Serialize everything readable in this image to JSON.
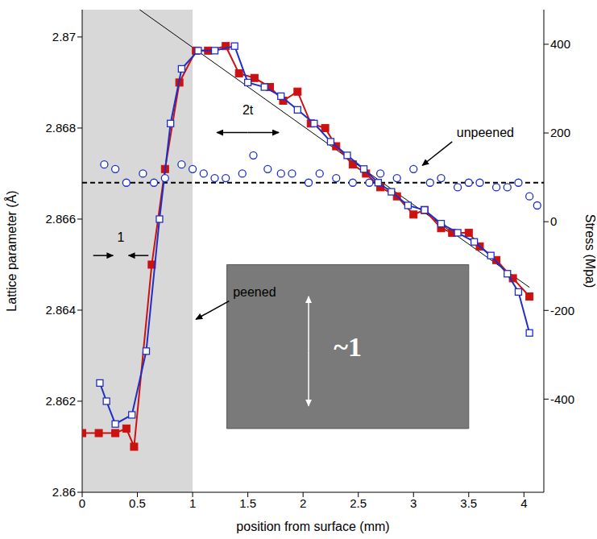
{
  "chart_data": {
    "type": "scatter",
    "x_label": "position from surface (mm)",
    "y_label": "Lattice parameter (Å)",
    "y2_label": "Stress (Mpa)",
    "xlim": [
      0,
      4.18
    ],
    "xticks": [
      0,
      0.5,
      1,
      1.5,
      2,
      2.5,
      3,
      3.5,
      4
    ],
    "ylim": [
      2.86,
      2.8706
    ],
    "yticks": [
      2.86,
      2.862,
      2.864,
      2.866,
      2.868,
      2.87
    ],
    "y2lim": [
      -610,
      478
    ],
    "y2ticks": [
      -400,
      -200,
      0,
      200,
      400
    ],
    "grid": false,
    "series": [
      {
        "color": "#cc1111",
        "marker": "square_filled",
        "line_style": "solid",
        "x": [
          0,
          0.15,
          0.3,
          0.4,
          0.47,
          0.63,
          0.75,
          0.88,
          1.03,
          1.14,
          1.3,
          1.42,
          1.56,
          1.7,
          1.82,
          1.95,
          2.07,
          2.2,
          2.3,
          2.45,
          2.57,
          2.7,
          2.85,
          3.0,
          3.1,
          3.25,
          3.35,
          3.5,
          3.6,
          3.75,
          3.9,
          4.05
        ],
        "values": [
          2.8613,
          2.8613,
          2.8613,
          2.8614,
          2.861,
          2.865,
          2.8671,
          2.869,
          2.8697,
          2.8697,
          2.8698,
          2.8692,
          2.8691,
          2.8689,
          2.8686,
          2.8688,
          2.8681,
          2.868,
          2.8676,
          2.8672,
          2.867,
          2.8667,
          2.8665,
          2.8661,
          2.8662,
          2.8658,
          2.8657,
          2.8657,
          2.8654,
          2.8651,
          2.8647,
          2.8643
        ]
      },
      {
        "color": "#1f2fc4",
        "marker": "square_open",
        "line_style": "solid",
        "x": [
          0.16,
          0.22,
          0.3,
          0.45,
          0.58,
          0.7,
          0.8,
          0.9,
          1.05,
          1.2,
          1.38,
          1.5,
          1.65,
          1.8,
          1.95,
          2.1,
          2.25,
          2.4,
          2.55,
          2.68,
          2.8,
          2.95,
          3.1,
          3.25,
          3.4,
          3.55,
          3.7,
          3.85,
          3.95,
          4.05
        ],
        "values": [
          2.8624,
          2.862,
          2.8615,
          2.8617,
          2.8631,
          2.866,
          2.8681,
          2.8693,
          2.8697,
          2.8697,
          2.8698,
          2.869,
          2.8689,
          2.8687,
          2.8684,
          2.8681,
          2.8677,
          2.8674,
          2.8671,
          2.8668,
          2.8666,
          2.8663,
          2.8662,
          2.8659,
          2.8657,
          2.8655,
          2.8652,
          2.8648,
          2.8644,
          2.8635
        ]
      },
      {
        "color": "#1f2fc4",
        "marker": "circle_open",
        "line_style": "none",
        "x": [
          0.2,
          0.3,
          0.4,
          0.55,
          0.65,
          0.75,
          0.9,
          1.0,
          1.1,
          1.2,
          1.3,
          1.45,
          1.55,
          1.68,
          1.8,
          1.9,
          2.05,
          2.15,
          2.3,
          2.45,
          2.6,
          2.7,
          2.85,
          3.0,
          3.15,
          3.25,
          3.4,
          3.5,
          3.6,
          3.75,
          3.85,
          3.95,
          4.05,
          4.12
        ],
        "values": [
          2.8672,
          2.8671,
          2.8668,
          2.867,
          2.8668,
          2.8669,
          2.8672,
          2.8671,
          2.867,
          2.8669,
          2.8669,
          2.867,
          2.8674,
          2.8671,
          2.867,
          2.867,
          2.8668,
          2.867,
          2.8669,
          2.8668,
          2.8668,
          2.867,
          2.8669,
          2.8671,
          2.8668,
          2.8669,
          2.8667,
          2.8668,
          2.8668,
          2.8667,
          2.8667,
          2.8668,
          2.8665,
          2.8663
        ]
      }
    ],
    "reference_line": {
      "value": 2.8668,
      "color": "#000000",
      "line_style": "dashed"
    },
    "trend_line": {
      "x": [
        0.52,
        4.05
      ],
      "values": [
        2.8706,
        2.8645
      ],
      "color": "#000000"
    },
    "shaded_region": {
      "x": [
        0,
        1
      ],
      "color": "#c8c8c8"
    },
    "annotations": [
      {
        "text": "2t",
        "x": 1.5,
        "y": 2.8684
      },
      {
        "text": "1",
        "x": 0.35,
        "y": 2.8656
      },
      {
        "text": "unpeened",
        "x": 3.65,
        "y": 2.8679
      },
      {
        "text": "peened",
        "x": 1.56,
        "y": 2.8644
      }
    ],
    "arrows": [
      {
        "x": [
          1.5,
          1.22
        ],
        "y": [
          2.8679,
          2.8679
        ],
        "color": "#000000"
      },
      {
        "x": [
          1.5,
          1.78
        ],
        "y": [
          2.8679,
          2.8679
        ],
        "color": "#000000"
      },
      {
        "x": [
          0.1,
          0.28
        ],
        "y": [
          2.8652,
          2.8652
        ],
        "color": "#000000"
      },
      {
        "x": [
          0.6,
          0.42
        ],
        "y": [
          2.8652,
          2.8652
        ],
        "color": "#000000"
      },
      {
        "x": [
          3.35,
          3.08
        ],
        "y": [
          2.8677,
          2.86718
        ],
        "color": "#000000"
      },
      {
        "x": [
          1.33,
          1.03
        ],
        "y": [
          2.8642,
          2.8638
        ],
        "color": "#000000"
      },
      {
        "x": [
          2.05,
          2.05
        ],
        "y": [
          2.8631,
          2.8643
        ],
        "color": "#ffffff"
      },
      {
        "x": [
          2.05,
          2.05
        ],
        "y": [
          2.8631,
          2.8619
        ],
        "color": "#ffffff"
      }
    ],
    "inset": {
      "label": "~1",
      "x": [
        1.31,
        3.5
      ],
      "y": [
        2.8614,
        2.865
      ],
      "color": "#7a7a7a"
    }
  }
}
